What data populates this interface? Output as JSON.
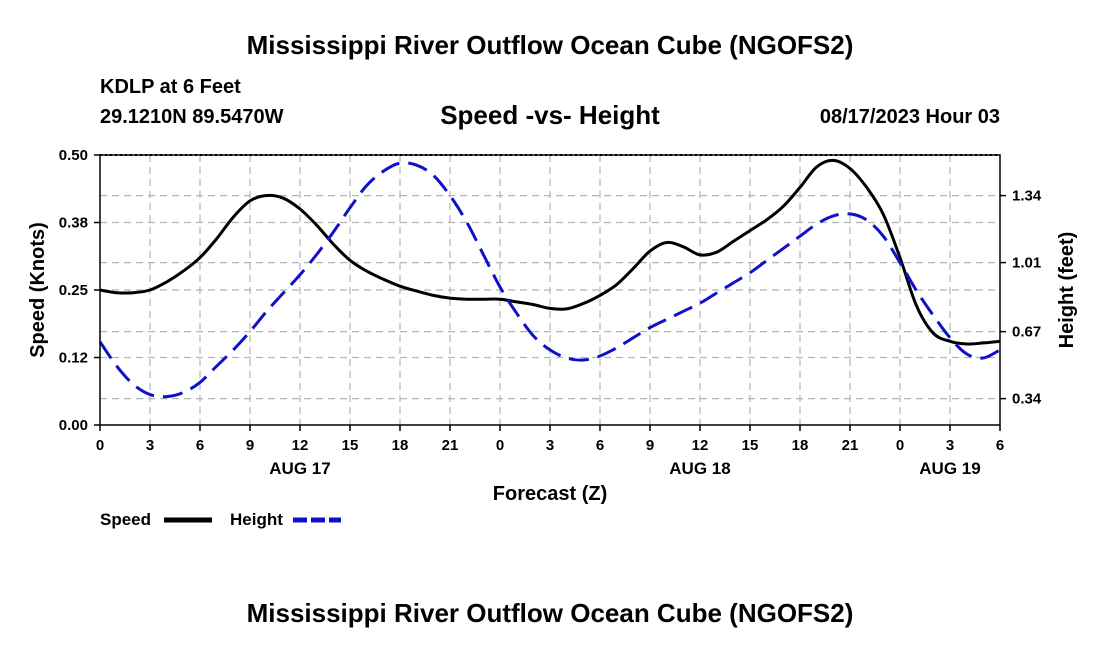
{
  "header": {
    "title": "Mississippi River Outflow Ocean Cube (NGOFS2)",
    "station": "KDLP at 6 Feet",
    "coords": "29.1210N  89.5470W",
    "subtitle": "Speed -vs- Height",
    "datetime": "08/17/2023 Hour 03"
  },
  "footer": {
    "title": "Mississippi River Outflow Ocean Cube (NGOFS2)"
  },
  "chart_data": {
    "type": "line",
    "title": "Speed -vs- Height",
    "xlabel": "Forecast (Z)",
    "ylabel": "Speed (Knots)",
    "y2label": "Height (feet)",
    "xlim": [
      0,
      54
    ],
    "ylim": [
      0,
      0.5
    ],
    "y2lim": [
      0.21,
      1.54
    ],
    "x_ticks": [
      0,
      3,
      6,
      9,
      12,
      15,
      18,
      21,
      24,
      27,
      30,
      33,
      36,
      39,
      42,
      45,
      48,
      51,
      54
    ],
    "x_tick_labels": [
      "0",
      "3",
      "6",
      "9",
      "12",
      "15",
      "18",
      "21",
      "0",
      "3",
      "6",
      "9",
      "12",
      "15",
      "18",
      "21",
      "0",
      "3",
      "6"
    ],
    "day_labels": [
      {
        "x": 12,
        "label": "AUG 17"
      },
      {
        "x": 36,
        "label": "AUG 18"
      },
      {
        "x": 51,
        "label": "AUG 19"
      }
    ],
    "y_ticks": [
      0,
      0.125,
      0.25,
      0.375,
      0.5
    ],
    "y_tick_labels": [
      "0.00",
      "0.12",
      "0.25",
      "0.38",
      "0.50"
    ],
    "y2_ticks": [
      0.34,
      0.67,
      1.01,
      1.34
    ],
    "y2_tick_labels": [
      "0.34",
      "0.67",
      "1.01",
      "1.34"
    ],
    "grid": true,
    "legend": [
      {
        "name": "Speed",
        "color": "#000000",
        "dash": "solid"
      },
      {
        "name": "Height",
        "color": "#1010c8",
        "dash": "dashed"
      }
    ],
    "series": [
      {
        "name": "Speed",
        "axis": "left",
        "unit": "knots",
        "color": "#000000",
        "x": [
          0,
          1,
          2,
          3,
          4,
          5,
          6,
          7,
          8,
          9,
          10,
          11,
          12,
          13,
          14,
          15,
          16,
          17,
          18,
          19,
          20,
          21,
          22,
          23,
          24,
          25,
          26,
          27,
          28,
          29,
          30,
          31,
          32,
          33,
          34,
          35,
          36,
          37,
          38,
          39,
          40,
          41,
          42,
          43,
          44,
          45,
          46,
          47,
          48,
          49,
          50,
          51,
          52,
          53,
          54
        ],
        "values": [
          0.25,
          0.245,
          0.245,
          0.25,
          0.265,
          0.285,
          0.31,
          0.345,
          0.385,
          0.415,
          0.425,
          0.42,
          0.4,
          0.37,
          0.335,
          0.305,
          0.285,
          0.27,
          0.257,
          0.248,
          0.24,
          0.235,
          0.233,
          0.233,
          0.233,
          0.228,
          0.223,
          0.216,
          0.215,
          0.225,
          0.24,
          0.26,
          0.29,
          0.322,
          0.338,
          0.33,
          0.315,
          0.32,
          0.34,
          0.36,
          0.38,
          0.405,
          0.44,
          0.478,
          0.49,
          0.475,
          0.44,
          0.39,
          0.31,
          0.22,
          0.17,
          0.155,
          0.15,
          0.152,
          0.155
        ]
      },
      {
        "name": "Height",
        "axis": "right",
        "unit": "feet",
        "color": "#1010c8",
        "x": [
          0,
          1,
          2,
          3,
          4,
          5,
          6,
          7,
          8,
          9,
          10,
          11,
          12,
          13,
          14,
          15,
          16,
          17,
          18,
          19,
          20,
          21,
          22,
          23,
          24,
          25,
          26,
          27,
          28,
          29,
          30,
          31,
          32,
          33,
          34,
          35,
          36,
          37,
          38,
          39,
          40,
          41,
          42,
          43,
          44,
          45,
          46,
          47,
          48,
          49,
          50,
          51,
          52,
          53,
          54
        ],
        "values": [
          0.62,
          0.5,
          0.41,
          0.36,
          0.35,
          0.37,
          0.42,
          0.5,
          0.58,
          0.67,
          0.77,
          0.86,
          0.95,
          1.05,
          1.16,
          1.28,
          1.39,
          1.46,
          1.5,
          1.49,
          1.44,
          1.34,
          1.21,
          1.05,
          0.89,
          0.76,
          0.65,
          0.58,
          0.54,
          0.53,
          0.55,
          0.59,
          0.64,
          0.69,
          0.73,
          0.77,
          0.81,
          0.86,
          0.91,
          0.96,
          1.02,
          1.08,
          1.14,
          1.2,
          1.24,
          1.25,
          1.22,
          1.14,
          1.01,
          0.87,
          0.75,
          0.64,
          0.56,
          0.54,
          0.58
        ]
      }
    ]
  }
}
